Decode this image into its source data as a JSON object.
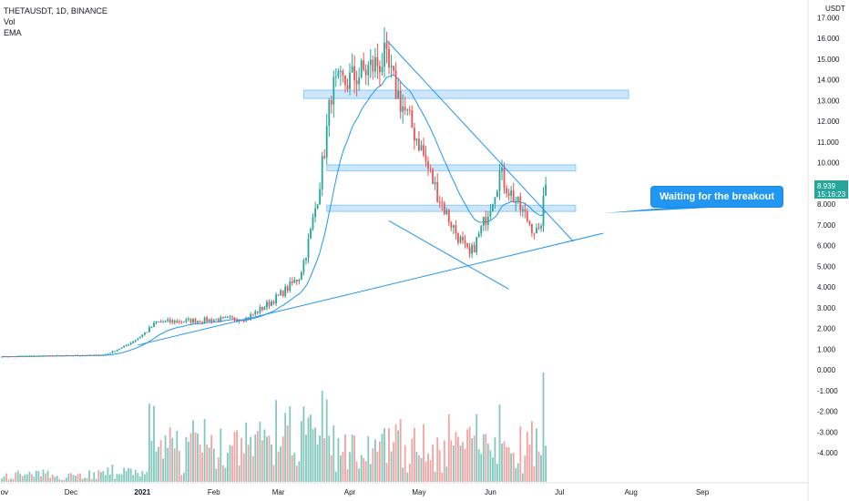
{
  "legend": {
    "symbol": "THETAUSDT, 1D, BINANCE",
    "vol": "Vol",
    "ema": "EMA"
  },
  "price_badge": {
    "price": "8.939",
    "countdown": "15:16:23"
  },
  "annotation": {
    "text": "Waiting for the breakout"
  },
  "colors": {
    "up": "#26a69a",
    "down": "#ef5350",
    "vol_up": "#83c8bd",
    "vol_down": "#f3a4a2",
    "ema": "#2196f3",
    "trendline": "#2196f3",
    "zone_fill": "#bbdefb",
    "zone_border": "#90caf9",
    "callout": "#2196f3",
    "badge": "#26a69a"
  },
  "chart_data": {
    "type": "candlestick",
    "currency_label": "USDT",
    "x_ticks": [
      "Nov",
      "Dec",
      "2021",
      "Feb",
      "Mar",
      "Apr",
      "May",
      "Jun",
      "Jul",
      "Aug",
      "Sep"
    ],
    "y_ticks": [
      "17.000",
      "16.000",
      "15.000",
      "14.000",
      "13.000",
      "12.000",
      "11.000",
      "10.000",
      "9.000",
      "8.000",
      "7.000",
      "6.000",
      "5.000",
      "4.000",
      "3.000",
      "2.000",
      "1.000",
      "0.000",
      "-1.000",
      "-2.000",
      "-3.000",
      "-4.000"
    ],
    "ylim": [
      -4.5,
      17.7
    ],
    "last_price": 8.939,
    "key_points": [
      {
        "date": "2020-11-01",
        "price": 0.65
      },
      {
        "date": "2020-12-15",
        "price": 0.72
      },
      {
        "date": "2021-01-07",
        "price": 2.3
      },
      {
        "date": "2021-02-15",
        "price": 2.5
      },
      {
        "date": "2021-03-10",
        "price": 4.5
      },
      {
        "date": "2021-03-24",
        "price": 13.5
      },
      {
        "date": "2021-04-16",
        "price": 15.0
      },
      {
        "date": "2021-05-01",
        "price": 11.0
      },
      {
        "date": "2021-05-23",
        "price": 5.5
      },
      {
        "date": "2021-06-05",
        "price": 9.5
      },
      {
        "date": "2021-06-22",
        "price": 6.5
      },
      {
        "date": "2021-06-25",
        "price": 8.939
      }
    ],
    "resistance_zones": [
      {
        "low": 13.1,
        "high": 13.5
      },
      {
        "low": 9.6,
        "high": 9.9
      },
      {
        "low": 7.65,
        "high": 7.95
      }
    ],
    "trendlines": [
      {
        "name": "descending resistance",
        "from": {
          "date": "2021-04-17",
          "price": 15.9
        },
        "to": {
          "date": "2021-07-07",
          "price": 6.2
        }
      },
      {
        "name": "descending channel lower",
        "from": {
          "date": "2021-04-18",
          "price": 7.2
        },
        "to": {
          "date": "2021-06-09",
          "price": 3.9
        }
      },
      {
        "name": "ascending support",
        "from": {
          "date": "2020-12-30",
          "price": 1.2
        },
        "to": {
          "date": "2021-07-20",
          "price": 6.6
        }
      }
    ]
  }
}
